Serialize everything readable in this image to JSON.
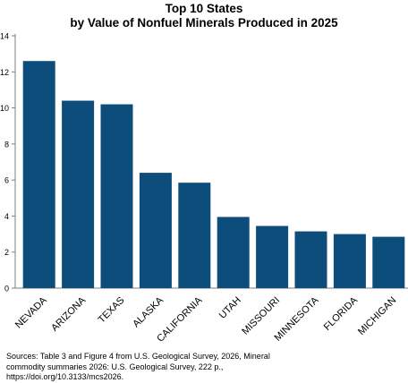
{
  "chart_data": {
    "type": "bar",
    "title_lines": [
      "Top 10 States",
      "by Value of Nonfuel Minerals Produced in 2025"
    ],
    "categories": [
      "NEVADA",
      "ARIZONA",
      "TEXAS",
      "ALASKA",
      "CALIFORNIA",
      "UTAH",
      "MISSOURI",
      "MINNESOTA",
      "FLORIDA",
      "MICHIGAN"
    ],
    "values": [
      12.6,
      10.4,
      10.2,
      6.4,
      5.85,
      3.95,
      3.45,
      3.15,
      3.0,
      2.85
    ],
    "xlabel": "",
    "ylabel": "",
    "ylim": [
      0,
      14
    ],
    "yticks": [
      0,
      2,
      4,
      6,
      8,
      10,
      12,
      14
    ],
    "grid": false,
    "legend": "none",
    "bar_color": "#0d4d7c"
  },
  "source_note": "Sources: Table 3 and Figure 4 from U.S. Geological Survey, 2026, Mineral commodity summaries 2026: U.S. Geological Survey, 222 p., https://doi.org/10.3133/mcs2026."
}
